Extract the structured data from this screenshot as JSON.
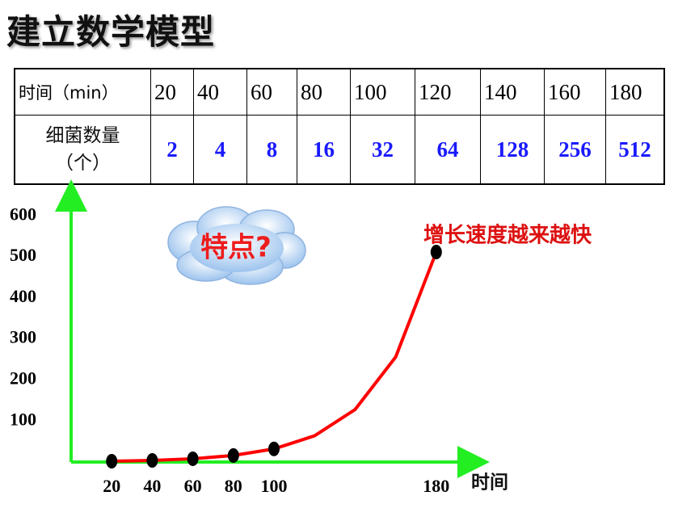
{
  "title": "建立数学模型",
  "table": {
    "rows": [
      [
        "时间（min）",
        "20",
        "40",
        "60",
        "80",
        "100",
        "120",
        "140",
        "160",
        "180"
      ],
      [
        [
          "细菌数量",
          "（个）"
        ],
        "2",
        "4",
        "8",
        "16",
        "32",
        "64",
        "128",
        "256",
        "512"
      ]
    ]
  },
  "callout": "特点?",
  "chart_data": {
    "type": "line",
    "annotation": "增长速度越来越快",
    "x_label": "时间",
    "x": [
      20,
      40,
      60,
      80,
      100,
      120,
      140,
      160,
      180
    ],
    "series": [
      {
        "color": "#ff0000",
        "marker_color": "#000000",
        "values": [
          2,
          4,
          8,
          16,
          32,
          64,
          128,
          256,
          512
        ]
      }
    ],
    "xlim": [
      0,
      200
    ],
    "xticks": [
      20,
      40,
      60,
      80,
      100,
      180
    ],
    "ylim": [
      0,
      650
    ],
    "yticks": [
      100,
      200,
      300,
      400,
      500,
      600
    ],
    "axis_color": "#22ee22",
    "grid": false
  }
}
